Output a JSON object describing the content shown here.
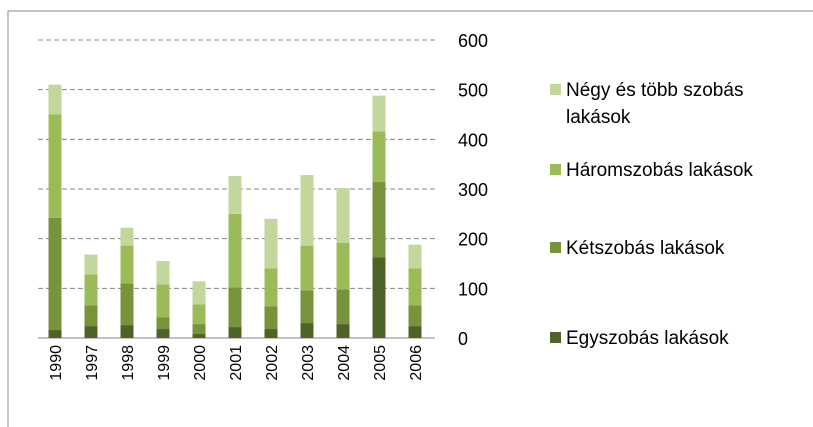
{
  "chart_data": {
    "type": "stacked_bar",
    "categories": [
      "1990",
      "1997",
      "1998",
      "1999",
      "2000",
      "2001",
      "2002",
      "2003",
      "2004",
      "2005",
      "2006"
    ],
    "series": [
      {
        "name": "Egyszobás lakások",
        "color": "#4f6228",
        "values": [
          16,
          24,
          26,
          18,
          8,
          22,
          18,
          30,
          28,
          162,
          24
        ]
      },
      {
        "name": "Kétszobás lakások",
        "color": "#77933c",
        "values": [
          226,
          42,
          84,
          24,
          20,
          80,
          46,
          66,
          70,
          152,
          42
        ]
      },
      {
        "name": "Háromszobás lakások",
        "color": "#9bbb59",
        "values": [
          208,
          62,
          76,
          66,
          40,
          148,
          76,
          90,
          94,
          102,
          74
        ]
      },
      {
        "name": "Négy és több szobás lakások",
        "color": "#c3d69b",
        "values": [
          60,
          40,
          36,
          47,
          46,
          76,
          100,
          142,
          110,
          72,
          48
        ]
      }
    ],
    "ylim": [
      0,
      600
    ],
    "yticks": [
      0,
      100,
      200,
      300,
      400,
      500,
      600
    ],
    "grid": true
  }
}
